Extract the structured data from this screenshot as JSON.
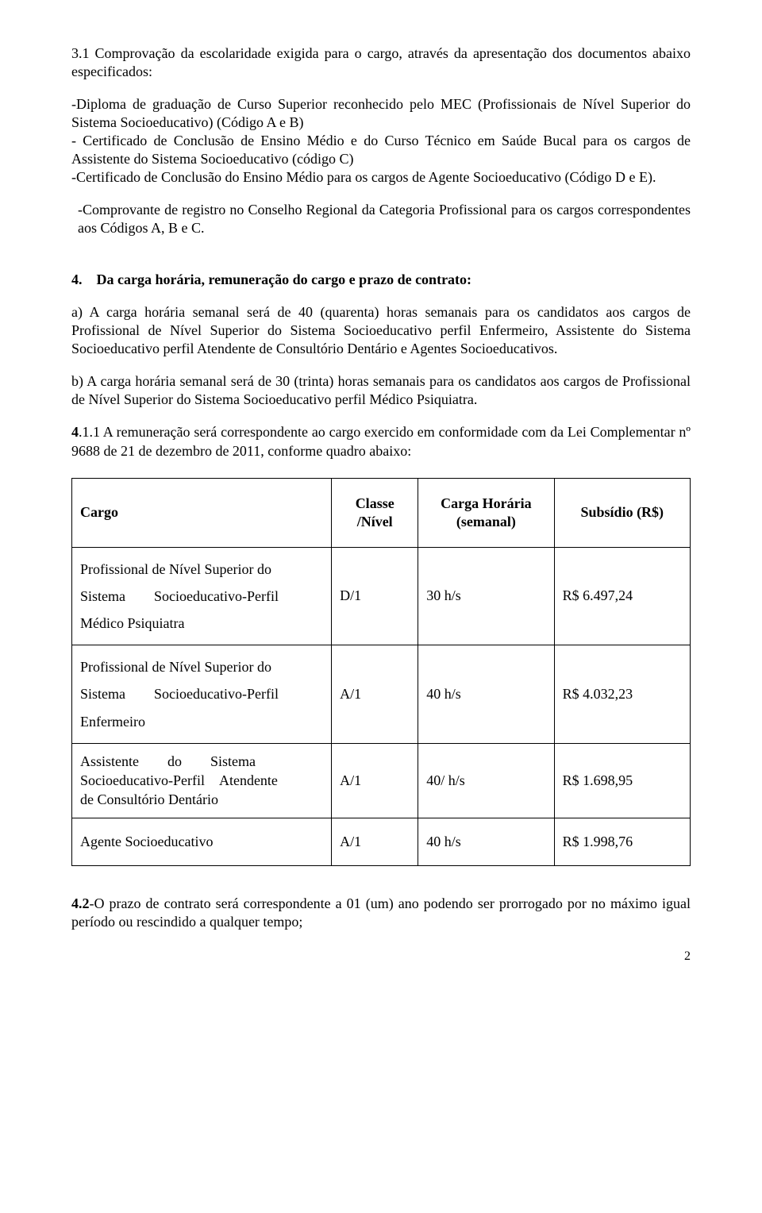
{
  "section3_1": {
    "lead": "3.1 Comprovação da escolaridade exigida para o cargo, através da apresentação dos documentos abaixo especificados:",
    "item1": "-Diploma de graduação de Curso Superior reconhecido pelo MEC (Profissionais de Nível Superior do Sistema Socioeducativo) (Código A e B)",
    "item2": "- Certificado de Conclusão de Ensino Médio e do Curso Técnico em Saúde Bucal para os cargos de Assistente do Sistema Socioeducativo (código C)",
    "item3": "-Certificado de Conclusão do Ensino Médio para os cargos de Agente Socioeducativo (Código D e E).",
    "item4": "-Comprovante de registro no Conselho Regional da Categoria Profissional para os cargos correspondentes aos Códigos A, B e C."
  },
  "section4": {
    "heading_num": "4.",
    "heading_text": "Da carga horária, remuneração do cargo e prazo de contrato:",
    "para_a": "a) A carga horária semanal será de 40 (quarenta) horas semanais para os candidatos aos cargos de Profissional de Nível Superior do Sistema Socioeducativo perfil Enfermeiro, Assistente do Sistema Socioeducativo perfil Atendente de Consultório Dentário e Agentes Socioeducativos.",
    "para_b": "b) A carga horária semanal será de 30 (trinta) horas semanais para os candidatos aos cargos de  Profissional de Nível Superior do Sistema Socioeducativo perfil Médico Psiquiatra.",
    "para_411_bold": "4",
    "para_411_rest": ".1.1 A remuneração será correspondente ao cargo exercido em conformidade com da Lei Complementar nº 9688 de 21 de dezembro de 2011, conforme quadro abaixo:"
  },
  "table": {
    "headers": {
      "cargo": "Cargo",
      "classe": "Classe /Nível",
      "carga": "Carga Horária (semanal)",
      "subsidio": "Subsídio (R$)"
    },
    "rows": [
      {
        "cargo_html": "Profissional de Nível Superior do<br>Sistema&nbsp;&nbsp;&nbsp;&nbsp;&nbsp;&nbsp;&nbsp;&nbsp;Socioeducativo-Perfil<br>Médico Psiquiatra",
        "classe": "D/1",
        "carga": "30 h/s",
        "subsidio": "R$ 6.497,24"
      },
      {
        "cargo_html": "Profissional de Nível Superior do<br>Sistema&nbsp;&nbsp;&nbsp;&nbsp;&nbsp;&nbsp;&nbsp;&nbsp;Socioeducativo-Perfil<br>Enfermeiro",
        "classe": "A/1",
        "carga": "40 h/s",
        "subsidio": "R$ 4.032,23"
      },
      {
        "cargo_html": "Assistente&nbsp;&nbsp;&nbsp;&nbsp;&nbsp;&nbsp;&nbsp;&nbsp;do&nbsp;&nbsp;&nbsp;&nbsp;&nbsp;&nbsp;&nbsp;&nbsp;Sistema<br>Socioeducativo-Perfil&nbsp;&nbsp;&nbsp;&nbsp;Atendente<br>de Consultório Dentário",
        "classe": "A/1",
        "carga": "40/ h/s",
        "subsidio": "R$ 1.698,95"
      },
      {
        "cargo_html": "Agente Socioeducativo",
        "classe": "A/1",
        "carga": "40 h/s",
        "subsidio": "R$ 1.998,76"
      }
    ]
  },
  "section4_2": {
    "bold": " 4.2",
    "rest": "-O prazo de contrato será correspondente a 01 (um) ano podendo ser prorrogado por no máximo igual período ou  rescindido a qualquer tempo;"
  },
  "page_number": "2"
}
